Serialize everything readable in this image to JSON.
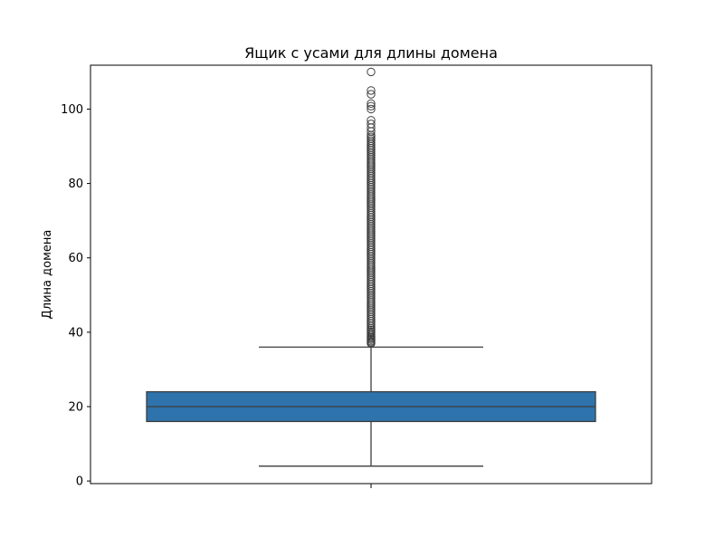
{
  "chart_data": {
    "type": "box",
    "title": "Ящик с усами для длины домена",
    "xlabel": "",
    "ylabel": "Длина домена",
    "ylim": [
      -0.7,
      111.8
    ],
    "yticks": [
      0,
      20,
      40,
      60,
      80,
      100
    ],
    "ytick_labels": [
      "0",
      "20",
      "40",
      "60",
      "80",
      "100"
    ],
    "grid": false,
    "legend": "none",
    "box": {
      "whisker_low": 4,
      "q1": 16,
      "median": 20,
      "q3": 24,
      "whisker_high": 36
    },
    "outliers": [
      37,
      37.3,
      37.6,
      38,
      38.3,
      38.6,
      39,
      39.4,
      39.8,
      40.2,
      40.6,
      41,
      41.5,
      42,
      42.5,
      43,
      43.5,
      44,
      44.5,
      45,
      45.5,
      46,
      46.5,
      47,
      47.5,
      48,
      48.5,
      49,
      49.5,
      50,
      50.5,
      51,
      51.5,
      52,
      52.5,
      53,
      53.5,
      54,
      54.5,
      55,
      55.5,
      56,
      56.5,
      57,
      57.5,
      58,
      58.5,
      59,
      59.5,
      60,
      60.5,
      61,
      61.5,
      62,
      62.5,
      63,
      63.5,
      64,
      64.5,
      65,
      65.5,
      66,
      66.5,
      67,
      67.5,
      68,
      68.5,
      69,
      69.5,
      70,
      70.5,
      71,
      71.5,
      72,
      72.5,
      73,
      73.5,
      74,
      74.5,
      75,
      75.5,
      76,
      76.5,
      77,
      77.5,
      78,
      78.5,
      79,
      79.5,
      80,
      80.5,
      81,
      81.5,
      82,
      82.5,
      83,
      83.5,
      84,
      84.5,
      85,
      85.5,
      86,
      86.5,
      87,
      87.5,
      88,
      88.5,
      89,
      89.5,
      90,
      90.5,
      91,
      91.5,
      92,
      92.5,
      93,
      94,
      95,
      96,
      97,
      100,
      100.8,
      101.5,
      104,
      105,
      110
    ],
    "colors": {
      "box_fill": "#2f73ac",
      "line": "#3d3d3d",
      "axes": "#000000",
      "background": "#ffffff"
    }
  }
}
